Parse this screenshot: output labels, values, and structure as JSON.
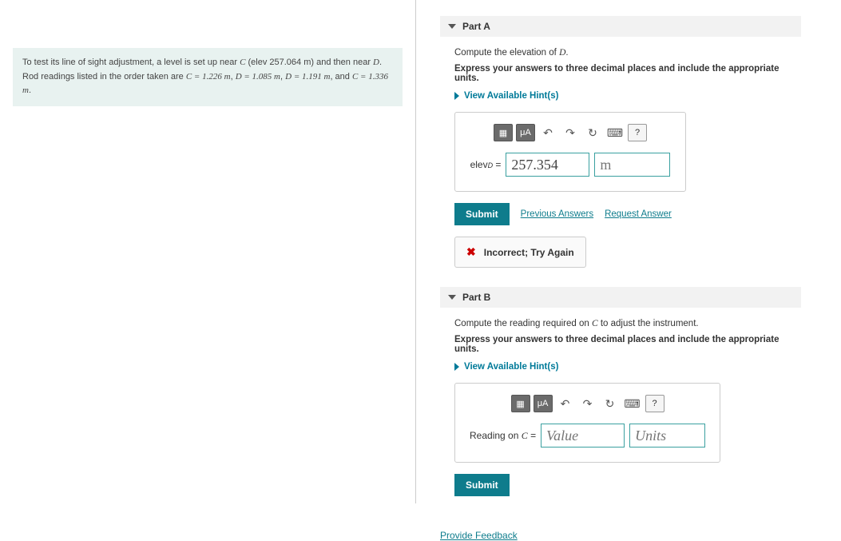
{
  "problem": {
    "text_1": "To test its line of sight adjustment, a level is set up near ",
    "var_C": "C",
    "text_2": " (elev 257.064 m) and then near ",
    "var_D": "D",
    "text_3": ". Rod readings listed in the order taken are ",
    "reading_1": "C = 1.226 m",
    "reading_2": "D = 1.085 m",
    "reading_3": "D = 1.191 m",
    "reading_4": "C = 1.336 m",
    "background_color": "#e8f2f0"
  },
  "partA": {
    "title": "Part A",
    "instruction_prefix": "Compute the elevation of ",
    "instruction_var": "D",
    "instruction_suffix": ".",
    "precision_text": "Express your answers to three decimal places and include the appropriate units.",
    "hints_label": "View Available Hint(s)",
    "answer_label_prefix": "elev",
    "answer_label_sub": "D",
    "answer_label_eq": " = ",
    "value": "257.354",
    "unit": "m",
    "submit_label": "Submit",
    "prev_answers_label": "Previous Answers",
    "request_answer_label": "Request Answer",
    "feedback_text": "Incorrect; Try Again"
  },
  "partB": {
    "title": "Part B",
    "instruction_prefix": "Compute the reading required on ",
    "instruction_var": "C",
    "instruction_suffix": " to adjust the instrument.",
    "precision_text": "Express your answers to three decimal places and include the appropriate units.",
    "hints_label": "View Available Hint(s)",
    "answer_label_prefix": "Reading on ",
    "answer_label_var": "C",
    "answer_label_eq": " = ",
    "value_placeholder": "Value",
    "unit_placeholder": "Units",
    "submit_label": "Submit"
  },
  "footer": {
    "provide_feedback": "Provide Feedback"
  },
  "toolbar_icons": {
    "templates": "▦",
    "greek": "μA",
    "undo": "↶",
    "redo": "↷",
    "reset": "↻",
    "keyboard": "⌨",
    "help": "?"
  },
  "colors": {
    "accent": "#0e7c8c",
    "hint_link": "#007a99",
    "input_border": "#3aa0a0",
    "error": "#cc0000",
    "panel_bg": "#f2f2f2"
  }
}
